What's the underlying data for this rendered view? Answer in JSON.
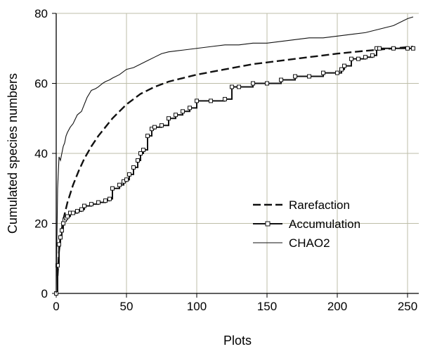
{
  "chart_data": {
    "type": "line",
    "xlabel": "Plots",
    "ylabel": "Cumulated species numbers",
    "xlim": [
      0,
      258
    ],
    "ylim": [
      0,
      80
    ],
    "xticks": [
      0,
      50,
      100,
      150,
      200,
      250
    ],
    "yticks": [
      0,
      20,
      40,
      60,
      80
    ],
    "grid": true,
    "legend": {
      "placement": "bottom-right"
    },
    "series": [
      {
        "name": "Rarefaction",
        "style": "dashed",
        "x": [
          1,
          2,
          3,
          5,
          8,
          12,
          16,
          20,
          25,
          30,
          35,
          40,
          45,
          50,
          60,
          70,
          80,
          90,
          100,
          120,
          140,
          160,
          180,
          200,
          220,
          240,
          254
        ],
        "y": [
          5,
          12,
          16,
          21,
          26,
          31,
          35,
          38.5,
          42,
          45,
          47.5,
          50,
          52,
          54,
          57,
          59,
          60.5,
          61.5,
          62.5,
          64,
          65.5,
          66.5,
          67.5,
          68.5,
          69.3,
          70,
          70.5
        ]
      },
      {
        "name": "Accumulation",
        "style": "solid-square-markers",
        "x": [
          0,
          1,
          2,
          3,
          4,
          5,
          6,
          7,
          8,
          10,
          12,
          15,
          18,
          20,
          25,
          30,
          35,
          38,
          40,
          45,
          48,
          50,
          52,
          55,
          58,
          60,
          62,
          65,
          68,
          70,
          75,
          80,
          85,
          90,
          95,
          100,
          110,
          120,
          125,
          130,
          140,
          150,
          160,
          170,
          180,
          190,
          200,
          203,
          205,
          210,
          215,
          220,
          225,
          228,
          230,
          240,
          250,
          254
        ],
        "y": [
          0,
          8,
          14,
          16,
          18,
          20,
          21,
          21.5,
          22,
          23,
          23,
          23.5,
          24,
          25,
          25.5,
          26,
          26.5,
          27,
          30,
          31,
          32,
          32.5,
          34,
          36,
          38,
          40,
          41,
          45,
          47,
          47.5,
          48,
          50,
          51,
          52,
          53,
          55,
          55,
          55.5,
          59,
          59,
          60,
          60,
          61,
          62,
          62,
          63,
          63,
          64,
          65,
          67,
          67,
          67.5,
          68,
          70,
          70,
          70,
          70,
          70
        ]
      },
      {
        "name": "CHAO2",
        "style": "solid-thin",
        "x": [
          0,
          1,
          2,
          3,
          4,
          5,
          6,
          7,
          8,
          10,
          12,
          15,
          18,
          20,
          22,
          25,
          28,
          30,
          33,
          35,
          38,
          40,
          45,
          50,
          55,
          60,
          65,
          70,
          75,
          80,
          90,
          100,
          110,
          120,
          130,
          140,
          150,
          160,
          170,
          180,
          190,
          200,
          210,
          220,
          230,
          240,
          250,
          254
        ],
        "y": [
          0,
          30,
          39,
          38,
          40,
          42,
          43,
          45,
          46,
          47.5,
          48.5,
          51,
          52,
          54,
          56,
          58,
          58.5,
          59,
          60,
          60.5,
          61,
          61.5,
          62.5,
          64,
          64.5,
          65.5,
          66.5,
          67.5,
          68.5,
          69,
          69.5,
          70,
          70.5,
          71,
          71,
          71.5,
          71.5,
          72,
          72.5,
          73,
          73,
          73.5,
          74,
          74.5,
          75.5,
          76.5,
          78.5,
          79
        ]
      }
    ]
  }
}
